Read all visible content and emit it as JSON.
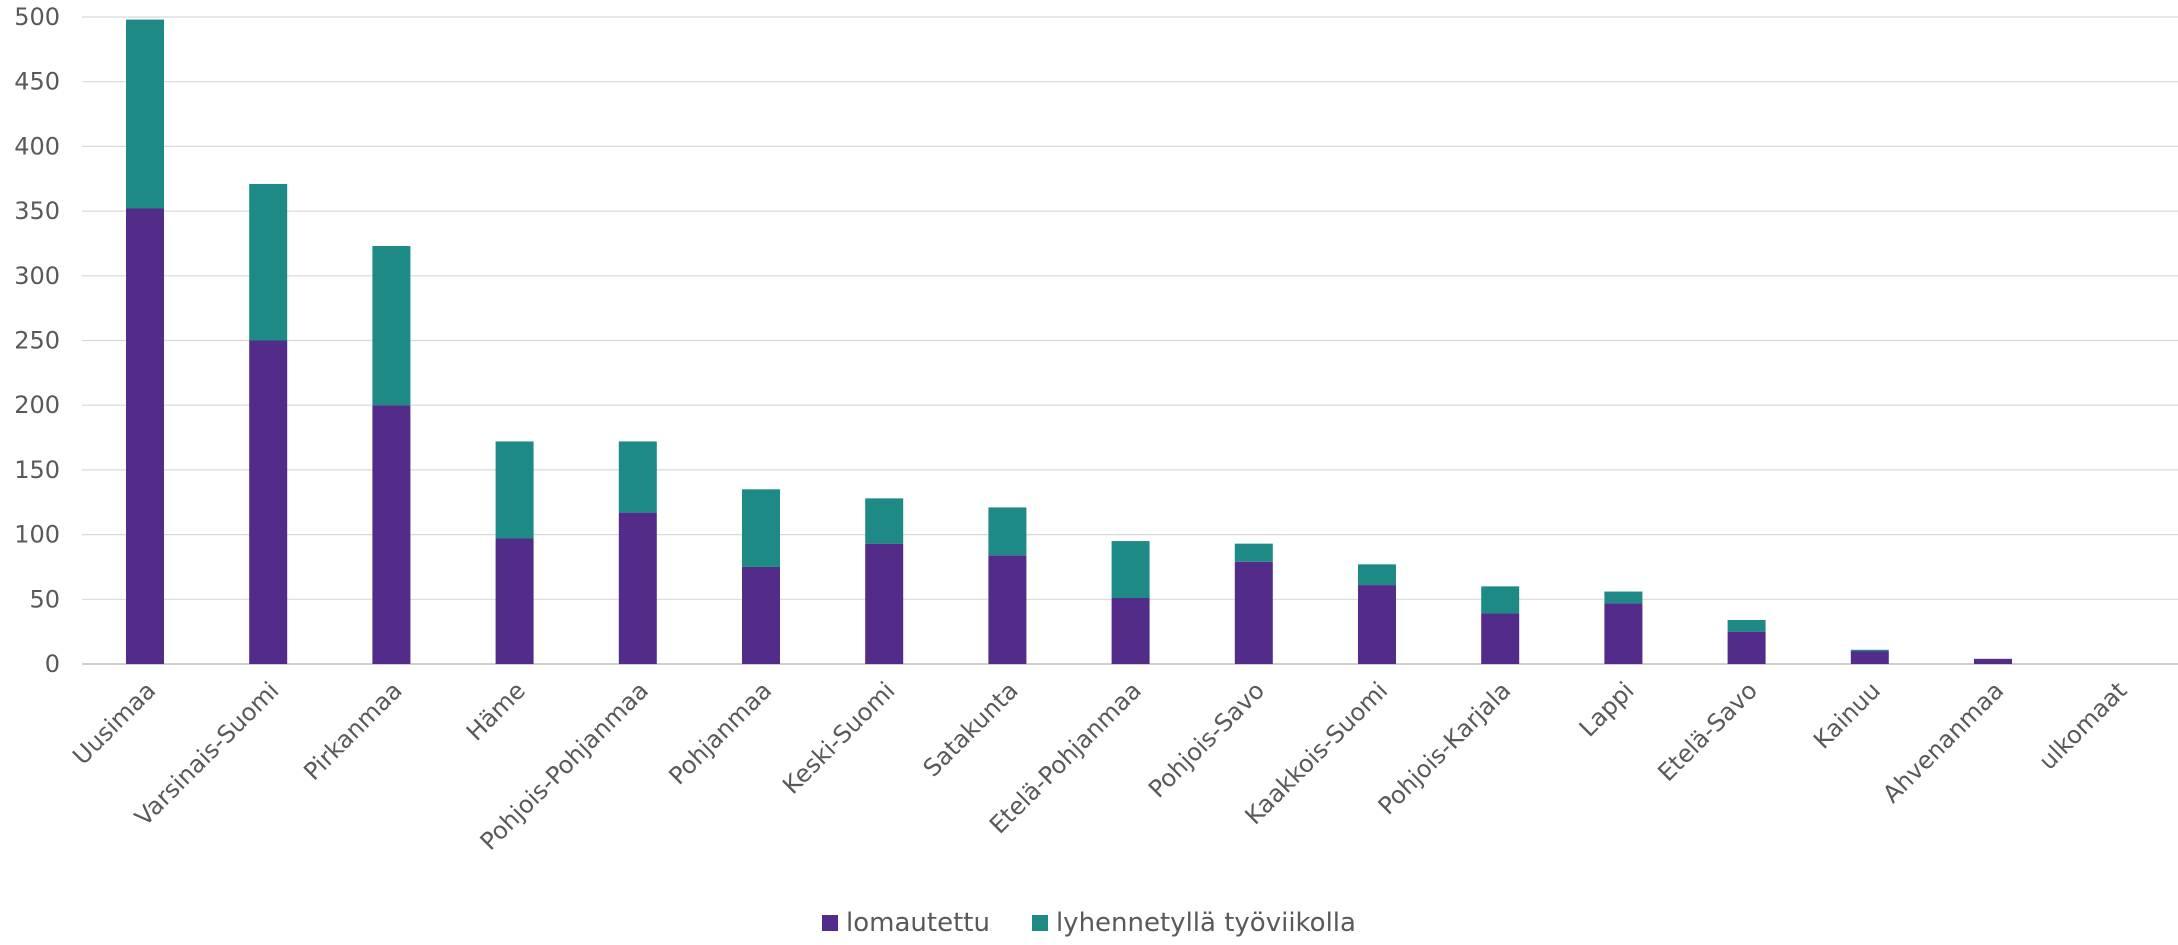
{
  "chart_data": {
    "type": "bar",
    "stacked": true,
    "categories": [
      "Uusimaa",
      "Varsinais-Suomi",
      "Pirkanmaa",
      "Häme",
      "Pohjois-Pohjanmaa",
      "Pohjanmaa",
      "Keski-Suomi",
      "Satakunta",
      "Etelä-Pohjanmaa",
      "Pohjois-Savo",
      "Kaakkois-Suomi",
      "Pohjois-Karjala",
      "Lappi",
      "Etelä-Savo",
      "Kainuu",
      "Ahvenanmaa",
      "ulkomaat"
    ],
    "series": [
      {
        "name": "lomautettu",
        "color": "#532C8A",
        "values": [
          352,
          250,
          200,
          97,
          117,
          75,
          93,
          84,
          51,
          79,
          61,
          39,
          47,
          25,
          10,
          4,
          0
        ]
      },
      {
        "name": "lyhennetyllä työviikolla",
        "color": "#1E8A86",
        "values": [
          146,
          121,
          123,
          75,
          55,
          60,
          35,
          37,
          44,
          14,
          16,
          21,
          9,
          9,
          1,
          0,
          0
        ]
      }
    ],
    "ylim": [
      0,
      500
    ],
    "yticks": [
      0,
      50,
      100,
      150,
      200,
      250,
      300,
      350,
      400,
      450,
      500
    ],
    "grid": true,
    "legend_position": "bottom",
    "title": "",
    "xlabel": "",
    "ylabel": ""
  }
}
